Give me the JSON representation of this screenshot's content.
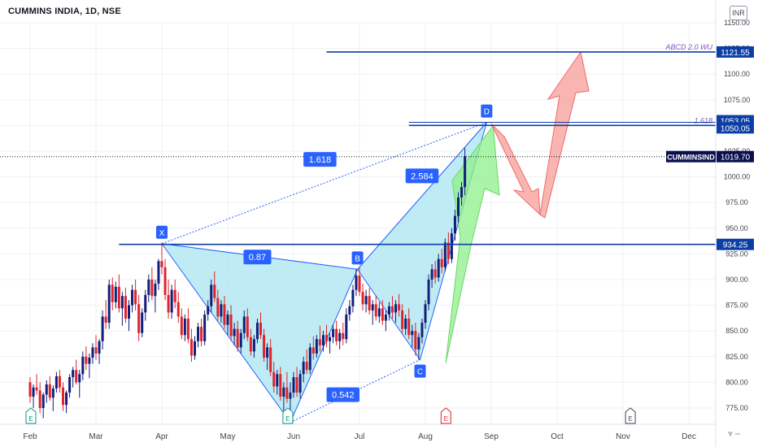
{
  "header": {
    "title": "CUMMINS INDIA, 1D, NSE",
    "currency": "INR"
  },
  "colors": {
    "up": "#131e7a",
    "down": "#e0242b",
    "grid": "#eef0f3",
    "hline": "#0d3ea6",
    "pattern_fill": "#a9e6f0",
    "pattern_stroke": "#2962ff",
    "green_arrow": "#8ef08a",
    "red_arrow": "#f8a8a3"
  },
  "chart_data": {
    "type": "candlestick",
    "symbol": "CUMMINS INDIA",
    "interval": "1D",
    "exchange": "NSE",
    "y_axis": {
      "ticks": [
        775,
        800,
        825,
        850,
        875,
        900,
        925,
        950,
        975,
        1000,
        1025,
        1050,
        1075,
        1100,
        1125,
        1150
      ],
      "tick_labels": [
        "775.00",
        "800.00",
        "825.00",
        "850.00",
        "875.00",
        "900.00",
        "925.00",
        "950.00",
        "975.00",
        "1000.00",
        "1025.00",
        "1050.00",
        "1075.00",
        "1100.00",
        "1125.00",
        "1150.00"
      ],
      "ylim": [
        760,
        1162
      ]
    },
    "x_axis": {
      "months": [
        "Feb",
        "Mar",
        "Apr",
        "May",
        "Jun",
        "Jul",
        "Aug",
        "Sep",
        "Oct",
        "Nov",
        "Dec"
      ]
    },
    "last_price": {
      "label": "CUMMINSIND",
      "value": 1019.7,
      "text": "1019.70"
    },
    "price_labels": [
      {
        "value": 1121.55,
        "text": "1121.55"
      },
      {
        "value": 1053.05,
        "text": "1053.05"
      },
      {
        "value": 1050.05,
        "text": "1050.05"
      },
      {
        "value": 934.25,
        "text": "934.25"
      }
    ],
    "horizontal_lines": [
      {
        "price": 1121.55,
        "from_month": 4.5,
        "caption": "ABCD 2.0 WU"
      },
      {
        "price": 1050.05,
        "from_month": 5.75,
        "caption": "1.618"
      },
      {
        "price": 934.25,
        "from_month": 1.35,
        "caption": ""
      }
    ],
    "harmonic_pattern": {
      "points": [
        {
          "label": "X",
          "month": 2.0,
          "price": 935.0
        },
        {
          "label": "A",
          "month": 3.95,
          "price": 761.0
        },
        {
          "label": "B",
          "month": 4.97,
          "price": 910.0
        },
        {
          "label": "C",
          "month": 5.92,
          "price": 822.0
        },
        {
          "label": "D",
          "month": 6.93,
          "price": 1053.0
        }
      ],
      "ratios": [
        {
          "text": "1.618",
          "month": 4.4,
          "price": 1017
        },
        {
          "text": "0.87",
          "month": 3.45,
          "price": 922
        },
        {
          "text": "2.584",
          "month": 5.95,
          "price": 1001
        },
        {
          "text": "0.542",
          "month": 4.75,
          "price": 788
        }
      ]
    },
    "events": [
      {
        "text": "E",
        "month": 0.0,
        "color": "#089981"
      },
      {
        "text": "E",
        "month": 3.9,
        "color": "#089981"
      },
      {
        "text": "E",
        "month": 6.3,
        "color": "#e0242b"
      },
      {
        "text": "E",
        "month": 9.1,
        "color": "#434651"
      }
    ],
    "candles": [
      [
        0.0,
        800,
        805,
        780,
        786
      ],
      [
        0.05,
        786,
        798,
        775,
        795
      ],
      [
        0.1,
        795,
        808,
        788,
        792
      ],
      [
        0.15,
        792,
        800,
        770,
        775
      ],
      [
        0.2,
        775,
        790,
        765,
        788
      ],
      [
        0.25,
        788,
        802,
        780,
        798
      ],
      [
        0.3,
        798,
        806,
        782,
        785
      ],
      [
        0.35,
        785,
        797,
        772,
        794
      ],
      [
        0.4,
        794,
        810,
        790,
        806
      ],
      [
        0.45,
        806,
        812,
        790,
        795
      ],
      [
        0.5,
        795,
        800,
        772,
        778
      ],
      [
        0.55,
        778,
        792,
        770,
        790
      ],
      [
        0.6,
        790,
        808,
        785,
        805
      ],
      [
        0.65,
        805,
        815,
        795,
        812
      ],
      [
        0.7,
        812,
        822,
        798,
        800
      ],
      [
        0.75,
        800,
        812,
        785,
        808
      ],
      [
        0.8,
        808,
        830,
        802,
        825
      ],
      [
        0.85,
        825,
        835,
        812,
        818
      ],
      [
        0.9,
        818,
        828,
        804,
        824
      ],
      [
        0.95,
        824,
        838,
        818,
        834
      ],
      [
        1.0,
        834,
        846,
        822,
        828
      ],
      [
        1.05,
        828,
        842,
        818,
        840
      ],
      [
        1.1,
        840,
        870,
        832,
        864
      ],
      [
        1.15,
        864,
        880,
        852,
        858
      ],
      [
        1.2,
        858,
        900,
        852,
        895
      ],
      [
        1.25,
        895,
        902,
        870,
        878
      ],
      [
        1.3,
        878,
        898,
        872,
        893
      ],
      [
        1.35,
        893,
        905,
        868,
        872
      ],
      [
        1.4,
        872,
        888,
        855,
        884
      ],
      [
        1.45,
        884,
        892,
        858,
        862
      ],
      [
        1.5,
        862,
        880,
        850,
        875
      ],
      [
        1.55,
        875,
        895,
        868,
        890
      ],
      [
        1.6,
        890,
        900,
        870,
        876
      ],
      [
        1.65,
        876,
        885,
        840,
        848
      ],
      [
        1.7,
        848,
        872,
        844,
        868
      ],
      [
        1.75,
        868,
        890,
        860,
        885
      ],
      [
        1.8,
        885,
        905,
        878,
        900
      ],
      [
        1.85,
        900,
        912,
        880,
        884
      ],
      [
        1.9,
        884,
        900,
        868,
        896
      ],
      [
        1.95,
        896,
        920,
        890,
        918
      ],
      [
        2.0,
        918,
        936,
        905,
        912
      ],
      [
        2.05,
        912,
        920,
        880,
        885
      ],
      [
        2.1,
        885,
        900,
        862,
        868
      ],
      [
        2.15,
        868,
        895,
        862,
        890
      ],
      [
        2.2,
        890,
        900,
        872,
        878
      ],
      [
        2.25,
        878,
        888,
        858,
        864
      ],
      [
        2.3,
        864,
        872,
        842,
        846
      ],
      [
        2.35,
        846,
        866,
        840,
        862
      ],
      [
        2.4,
        862,
        872,
        838,
        842
      ],
      [
        2.45,
        842,
        852,
        820,
        826
      ],
      [
        2.5,
        826,
        845,
        822,
        840
      ],
      [
        2.55,
        840,
        858,
        834,
        854
      ],
      [
        2.6,
        854,
        862,
        835,
        840
      ],
      [
        2.65,
        840,
        870,
        836,
        866
      ],
      [
        2.7,
        866,
        880,
        860,
        874
      ],
      [
        2.75,
        874,
        900,
        868,
        895
      ],
      [
        2.8,
        895,
        908,
        878,
        882
      ],
      [
        2.85,
        882,
        890,
        860,
        864
      ],
      [
        2.9,
        864,
        880,
        858,
        876
      ],
      [
        2.95,
        876,
        884,
        852,
        856
      ],
      [
        3.0,
        856,
        870,
        846,
        866
      ],
      [
        3.05,
        866,
        875,
        840,
        845
      ],
      [
        3.1,
        845,
        858,
        836,
        852
      ],
      [
        3.15,
        852,
        860,
        830,
        834
      ],
      [
        3.2,
        834,
        852,
        828,
        848
      ],
      [
        3.25,
        848,
        870,
        842,
        864
      ],
      [
        3.3,
        864,
        872,
        840,
        844
      ],
      [
        3.35,
        844,
        852,
        826,
        830
      ],
      [
        3.4,
        830,
        846,
        824,
        842
      ],
      [
        3.45,
        842,
        862,
        838,
        858
      ],
      [
        3.5,
        858,
        868,
        842,
        846
      ],
      [
        3.55,
        846,
        852,
        820,
        824
      ],
      [
        3.6,
        824,
        838,
        812,
        834
      ],
      [
        3.65,
        834,
        842,
        806,
        810
      ],
      [
        3.7,
        810,
        820,
        790,
        796
      ],
      [
        3.75,
        796,
        812,
        788,
        808
      ],
      [
        3.8,
        808,
        815,
        782,
        786
      ],
      [
        3.85,
        786,
        800,
        772,
        795
      ],
      [
        3.9,
        795,
        810,
        780,
        784
      ],
      [
        3.95,
        784,
        800,
        762,
        790
      ],
      [
        4.0,
        790,
        810,
        785,
        805
      ],
      [
        4.05,
        805,
        815,
        786,
        790
      ],
      [
        4.1,
        790,
        812,
        784,
        808
      ],
      [
        4.15,
        808,
        825,
        800,
        820
      ],
      [
        4.2,
        820,
        832,
        808,
        812
      ],
      [
        4.25,
        812,
        838,
        808,
        834
      ],
      [
        4.3,
        834,
        845,
        822,
        828
      ],
      [
        4.35,
        828,
        846,
        824,
        842
      ],
      [
        4.4,
        842,
        855,
        830,
        836
      ],
      [
        4.45,
        836,
        850,
        830,
        846
      ],
      [
        4.5,
        846,
        856,
        834,
        840
      ],
      [
        4.55,
        840,
        848,
        828,
        844
      ],
      [
        4.6,
        844,
        856,
        838,
        852
      ],
      [
        4.65,
        852,
        860,
        836,
        840
      ],
      [
        4.7,
        840,
        852,
        832,
        848
      ],
      [
        4.75,
        848,
        858,
        836,
        842
      ],
      [
        4.8,
        842,
        872,
        838,
        866
      ],
      [
        4.85,
        866,
        880,
        860,
        874
      ],
      [
        4.9,
        874,
        895,
        868,
        890
      ],
      [
        4.95,
        890,
        910,
        884,
        904
      ],
      [
        5.0,
        904,
        912,
        884,
        888
      ],
      [
        5.05,
        888,
        896,
        870,
        876
      ],
      [
        5.1,
        876,
        890,
        868,
        884
      ],
      [
        5.15,
        884,
        892,
        866,
        870
      ],
      [
        5.2,
        870,
        880,
        856,
        876
      ],
      [
        5.25,
        876,
        884,
        860,
        864
      ],
      [
        5.3,
        864,
        878,
        858,
        872
      ],
      [
        5.35,
        872,
        880,
        856,
        860
      ],
      [
        5.4,
        860,
        870,
        850,
        866
      ],
      [
        5.45,
        866,
        878,
        860,
        874
      ],
      [
        5.5,
        874,
        884,
        862,
        868
      ],
      [
        5.55,
        868,
        880,
        858,
        876
      ],
      [
        5.6,
        876,
        886,
        864,
        870
      ],
      [
        5.65,
        870,
        876,
        848,
        852
      ],
      [
        5.7,
        852,
        866,
        846,
        862
      ],
      [
        5.75,
        862,
        872,
        842,
        846
      ],
      [
        5.8,
        846,
        856,
        834,
        850
      ],
      [
        5.85,
        850,
        858,
        826,
        832
      ],
      [
        5.9,
        832,
        848,
        822,
        844
      ],
      [
        5.95,
        844,
        862,
        838,
        858
      ],
      [
        6.0,
        858,
        880,
        852,
        876
      ],
      [
        6.05,
        876,
        905,
        870,
        900
      ],
      [
        6.1,
        900,
        915,
        892,
        910
      ],
      [
        6.15,
        910,
        918,
        896,
        902
      ],
      [
        6.2,
        902,
        925,
        898,
        920
      ],
      [
        6.25,
        920,
        930,
        906,
        912
      ],
      [
        6.3,
        912,
        940,
        908,
        936
      ],
      [
        6.35,
        936,
        946,
        915,
        920
      ],
      [
        6.4,
        920,
        950,
        916,
        945
      ],
      [
        6.45,
        945,
        968,
        938,
        962
      ],
      [
        6.5,
        962,
        985,
        955,
        980
      ],
      [
        6.55,
        980,
        995,
        972,
        990
      ],
      [
        6.6,
        990,
        1028,
        982,
        1020
      ]
    ]
  }
}
